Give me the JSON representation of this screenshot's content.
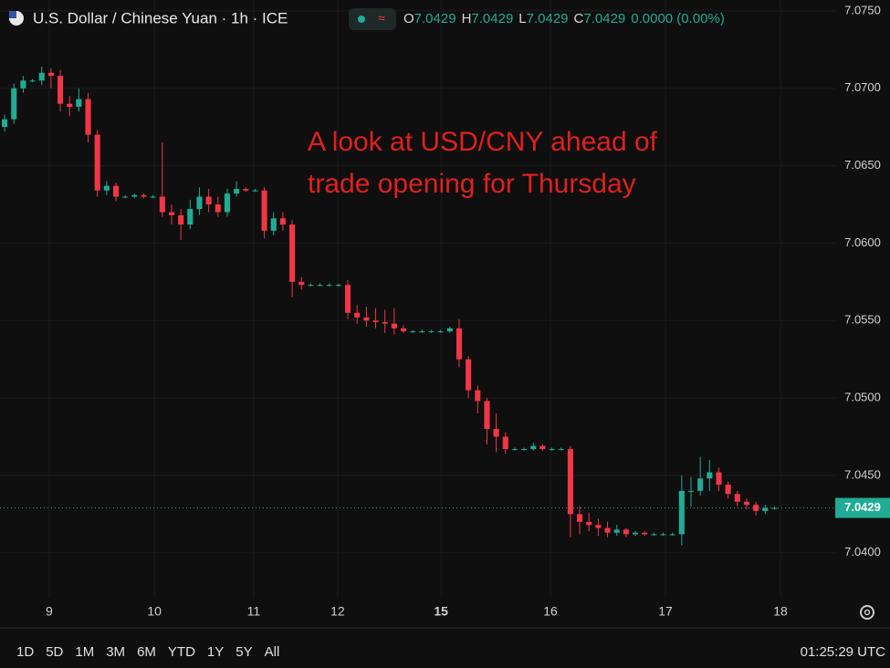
{
  "chart_data": {
    "type": "candlestick",
    "header": {
      "symbol": "U.S. Dollar / Chinese Yuan · 1h · ICE",
      "ohlc": [
        {
          "key": "O",
          "value": "7.0429"
        },
        {
          "key": "H",
          "value": "7.0429"
        },
        {
          "key": "L",
          "value": "7.0429"
        },
        {
          "key": "C",
          "value": "7.0429"
        }
      ],
      "change": "0.0000 (0.00%)"
    },
    "annotation": [
      "A look at USD/CNY ahead of",
      "trade opening for Thursday"
    ],
    "x": [
      1,
      3,
      5,
      7,
      9,
      11,
      13,
      15,
      17,
      19,
      21,
      23,
      25,
      27,
      29,
      31,
      33,
      35,
      37,
      39,
      41,
      43,
      45,
      47,
      49,
      51,
      53,
      55,
      57,
      59,
      61,
      63,
      65,
      67,
      69,
      71,
      73,
      75,
      77,
      79,
      81,
      83,
      85,
      87,
      89,
      91,
      93,
      95,
      97,
      99,
      101,
      103,
      105,
      107,
      109,
      111,
      113,
      115,
      117,
      119,
      121,
      123,
      125,
      127,
      129,
      131,
      133,
      135,
      137,
      139,
      141,
      143,
      145,
      147,
      149,
      151,
      153,
      155,
      157,
      159,
      161,
      163,
      165,
      167
    ],
    "open": [
      7.0675,
      7.068,
      7.07,
      7.0705,
      7.0705,
      7.071,
      7.0708,
      7.069,
      7.0688,
      7.0693,
      7.067,
      7.0634,
      7.0637,
      7.063,
      7.063,
      7.0631,
      7.063,
      7.063,
      7.062,
      7.0618,
      7.0612,
      7.0622,
      7.063,
      7.0625,
      7.062,
      7.0632,
      7.0635,
      7.0634,
      7.0634,
      7.0608,
      7.0616,
      7.0612,
      7.0575,
      7.0573,
      7.0573,
      7.0573,
      7.0573,
      7.0573,
      7.0555,
      7.0552,
      7.055,
      7.0549,
      7.0548,
      7.0545,
      7.0543,
      7.0543,
      7.0543,
      7.0543,
      7.0543,
      7.0545,
      7.0525,
      7.0505,
      7.0498,
      7.048,
      7.0475,
      7.0467,
      7.0467,
      7.0467,
      7.0469,
      7.0467,
      7.0467,
      7.0467,
      7.0425,
      7.042,
      7.0418,
      7.0416,
      7.0413,
      7.0415,
      7.0412,
      7.0413,
      7.0412,
      7.0412,
      7.0412,
      7.0412,
      7.044,
      7.044,
      7.0448,
      7.0452,
      7.0444,
      7.0438,
      7.0433,
      7.0431,
      7.0427,
      7.0429
    ],
    "high": [
      7.0683,
      7.0703,
      7.0708,
      7.0706,
      7.0714,
      7.0713,
      7.0712,
      7.0695,
      7.07,
      7.0697,
      7.0673,
      7.064,
      7.0639,
      7.0631,
      7.0632,
      7.0632,
      7.0631,
      7.0665,
      7.0625,
      7.0622,
      7.0628,
      7.0636,
      7.0635,
      7.063,
      7.0635,
      7.064,
      7.0636,
      7.0635,
      7.0636,
      7.062,
      7.062,
      7.0615,
      7.0578,
      7.0574,
      7.0574,
      7.0574,
      7.0574,
      7.0576,
      7.056,
      7.0559,
      7.0558,
      7.0557,
      7.0558,
      7.0547,
      7.0544,
      7.0544,
      7.0544,
      7.0544,
      7.0546,
      7.0551,
      7.0527,
      7.0508,
      7.05,
      7.049,
      7.0478,
      7.0468,
      7.0468,
      7.0471,
      7.047,
      7.0468,
      7.0468,
      7.0469,
      7.043,
      7.0426,
      7.0422,
      7.042,
      7.0418,
      7.0416,
      7.0414,
      7.0414,
      7.0413,
      7.0413,
      7.0413,
      7.045,
      7.0449,
      7.0462,
      7.046,
      7.0455,
      7.0446,
      7.044,
      7.0435,
      7.0433,
      7.0431,
      7.043
    ],
    "low": [
      7.0672,
      7.0677,
      7.0697,
      7.0704,
      7.0702,
      7.07,
      7.0685,
      7.0682,
      7.0685,
      7.0665,
      7.063,
      7.0631,
      7.0627,
      7.0629,
      7.0629,
      7.0629,
      7.0629,
      7.0617,
      7.0612,
      7.0602,
      7.0609,
      7.0618,
      7.062,
      7.0617,
      7.0617,
      7.063,
      7.0633,
      7.0633,
      7.0603,
      7.0605,
      7.0608,
      7.0565,
      7.057,
      7.0572,
      7.0572,
      7.0572,
      7.0572,
      7.0551,
      7.0548,
      7.0546,
      7.0545,
      7.0542,
      7.0541,
      7.0542,
      7.0542,
      7.0542,
      7.0542,
      7.0542,
      7.0542,
      7.052,
      7.05,
      7.049,
      7.047,
      7.0465,
      7.0464,
      7.0466,
      7.0466,
      7.0466,
      7.0466,
      7.0466,
      7.0466,
      7.041,
      7.0412,
      7.0414,
      7.0411,
      7.041,
      7.0411,
      7.041,
      7.0411,
      7.0411,
      7.0411,
      7.0411,
      7.0411,
      7.0405,
      7.043,
      7.0437,
      7.044,
      7.044,
      7.0435,
      7.043,
      7.0428,
      7.0424,
      7.0425,
      7.0428
    ],
    "close": [
      7.068,
      7.07,
      7.0705,
      7.0705,
      7.071,
      7.0708,
      7.069,
      7.0688,
      7.0693,
      7.067,
      7.0634,
      7.0637,
      7.063,
      7.063,
      7.0631,
      7.063,
      7.063,
      7.062,
      7.0618,
      7.0612,
      7.0622,
      7.063,
      7.0625,
      7.062,
      7.0632,
      7.0635,
      7.0634,
      7.0634,
      7.0608,
      7.0616,
      7.0612,
      7.0575,
      7.0573,
      7.0573,
      7.0573,
      7.0573,
      7.0573,
      7.0555,
      7.0552,
      7.055,
      7.0549,
      7.0548,
      7.0545,
      7.0543,
      7.0543,
      7.0543,
      7.0543,
      7.0543,
      7.0545,
      7.0525,
      7.0505,
      7.0498,
      7.048,
      7.0475,
      7.0467,
      7.0467,
      7.0467,
      7.0469,
      7.0467,
      7.0467,
      7.0467,
      7.0425,
      7.042,
      7.0418,
      7.0416,
      7.0413,
      7.0415,
      7.0412,
      7.0413,
      7.0412,
      7.0412,
      7.0412,
      7.0412,
      7.044,
      7.044,
      7.0448,
      7.0452,
      7.0444,
      7.0438,
      7.0433,
      7.0431,
      7.0427,
      7.0429,
      7.0429
    ],
    "up_color": "#22ab94",
    "down_color": "#f23645",
    "xlim": [
      0,
      180.1
    ],
    "xticks": [
      {
        "value": 10.6,
        "label": "9"
      },
      {
        "value": 33.3,
        "label": "10"
      },
      {
        "value": 54.7,
        "label": "11"
      },
      {
        "value": 72.8,
        "label": "12"
      },
      {
        "value": 95.1,
        "label": "15"
      },
      {
        "value": 118.7,
        "label": "16"
      },
      {
        "value": 143.5,
        "label": "17"
      },
      {
        "value": 168.3,
        "label": "18"
      }
    ],
    "ylim": [
      7.0371,
      7.0757
    ],
    "yticks": [
      {
        "value": 7.04,
        "label": "7.0400"
      },
      {
        "value": 7.045,
        "label": "7.0450"
      },
      {
        "value": 7.05,
        "label": "7.0500"
      },
      {
        "value": 7.055,
        "label": "7.0550"
      },
      {
        "value": 7.06,
        "label": "7.0600"
      },
      {
        "value": 7.065,
        "label": "7.0650"
      },
      {
        "value": 7.07,
        "label": "7.0700"
      },
      {
        "value": 7.075,
        "label": "7.0750"
      }
    ],
    "last_price": {
      "value": 7.0429,
      "label": "7.0429"
    },
    "grid": true,
    "ranges": [
      "1D",
      "5D",
      "1M",
      "3M",
      "6M",
      "YTD",
      "1Y",
      "5Y",
      "All"
    ],
    "clock": "01:25:29 UTC"
  }
}
